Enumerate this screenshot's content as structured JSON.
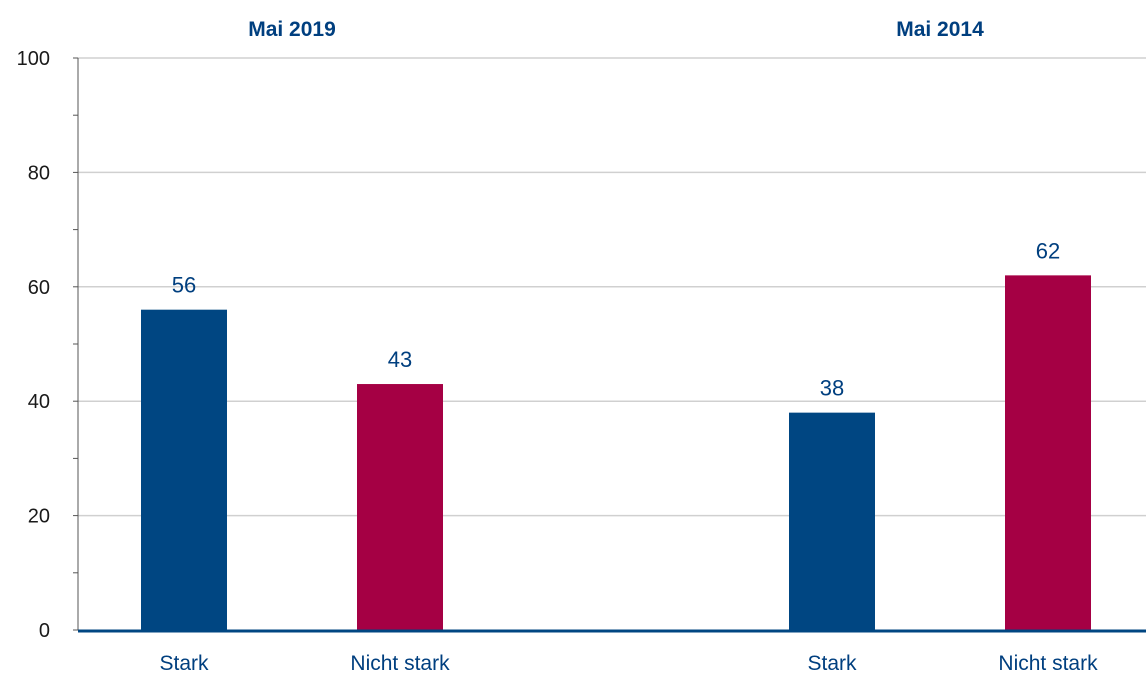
{
  "chart_data": {
    "type": "bar",
    "groups": [
      {
        "title": "Mai 2019",
        "bars": [
          {
            "category": "Stark",
            "value": 56,
            "label": "56",
            "color": "#004682"
          },
          {
            "category": "Nicht stark",
            "value": 43,
            "label": "43",
            "color": "#a50044"
          }
        ]
      },
      {
        "title": "Mai 2014",
        "bars": [
          {
            "category": "Stark",
            "value": 38,
            "label": "38",
            "color": "#004682"
          },
          {
            "category": "Nicht stark",
            "value": 62,
            "label": "62",
            "color": "#a50044"
          }
        ]
      }
    ],
    "yticks": [
      "0",
      "20",
      "40",
      "60",
      "80",
      "100"
    ],
    "ylim": [
      0,
      100
    ],
    "grid": true,
    "axis_color": "#004682",
    "grid_color": "#d0d0d0"
  }
}
